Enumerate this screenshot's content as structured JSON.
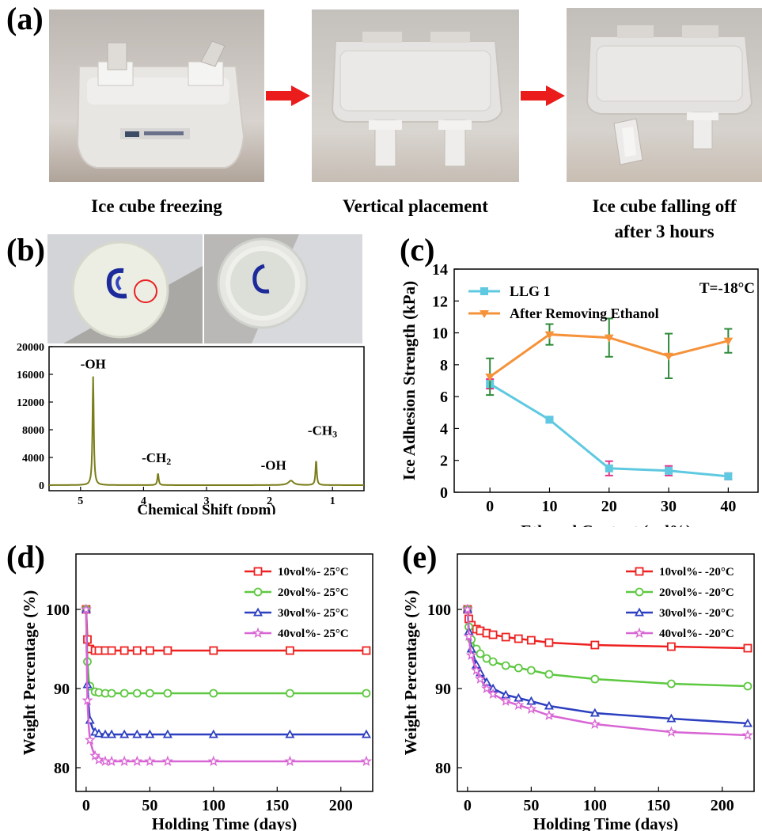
{
  "panel_a": {
    "letter": "(a)",
    "captions": [
      "Ice cube freezing",
      "Vertical placement",
      "Ice cube falling off",
      "after 3 hours"
    ]
  },
  "panel_b": {
    "letter": "(b)",
    "chart_data": {
      "type": "line",
      "xlabel": "Chemical Shift (ppm)",
      "ylabel": "",
      "xlim": [
        5.5,
        0.5
      ],
      "ylim": [
        -800,
        20000
      ],
      "xticks": [
        5,
        4,
        3,
        2,
        1
      ],
      "yticks": [
        0,
        4000,
        8000,
        12000,
        16000,
        20000
      ],
      "color": "#7b7d1a",
      "peaks": [
        {
          "x": 4.8,
          "y": 15700,
          "label": "-OH"
        },
        {
          "x": 3.77,
          "y": 1700,
          "label": "-CH",
          "sub": "2"
        },
        {
          "x": 1.66,
          "y": 650,
          "label": "-OH"
        },
        {
          "x": 1.26,
          "y": 3600,
          "label": "-CH",
          "sub": "3"
        }
      ]
    }
  },
  "panel_c": {
    "letter": "(c)",
    "chart_data": {
      "type": "line",
      "xlabel": "Ethanol Content (vol%)",
      "ylabel": "Ice Adhesion Strength (kPa)",
      "annotation": "T=-18°C",
      "x": [
        0,
        10,
        20,
        30,
        40
      ],
      "xlim": [
        -6,
        45
      ],
      "ylim": [
        0,
        14
      ],
      "xticks": [
        0,
        10,
        20,
        30,
        40
      ],
      "yticks": [
        0,
        2,
        4,
        6,
        8,
        10,
        12,
        14
      ],
      "legend_position": "top-left",
      "series": [
        {
          "name": "LLG 1",
          "values": [
            6.8,
            4.55,
            1.5,
            1.35,
            1.0
          ],
          "errors": [
            0.3,
            0.15,
            0.45,
            0.3,
            0.2
          ],
          "color": "#5ec9e0",
          "error_color": "#e0338c",
          "marker": "square"
        },
        {
          "name": "After Removing Ethanol",
          "values": [
            7.25,
            9.9,
            9.7,
            8.55,
            9.5
          ],
          "errors": [
            1.15,
            0.65,
            1.2,
            1.4,
            0.75
          ],
          "color": "#f5923a",
          "error_color": "#2e8b3a",
          "marker": "triangle-down"
        }
      ]
    }
  },
  "panel_d": {
    "letter": "(d)",
    "chart_data": {
      "type": "line",
      "xlabel": "Holding Time (days)",
      "ylabel": "Weight Percentage (%)",
      "x": [
        0,
        1,
        2,
        3,
        5,
        7,
        10,
        15,
        20,
        30,
        40,
        50,
        64,
        100,
        160,
        220
      ],
      "xlim": [
        -8,
        225
      ],
      "ylim": [
        77,
        107
      ],
      "xticks": [
        0,
        50,
        100,
        150,
        200
      ],
      "yticks": [
        80,
        90,
        100
      ],
      "legend_position": "top-right",
      "series": [
        {
          "name": "10vol%- 25°C",
          "values": [
            100,
            96.2,
            95.5,
            95.0,
            94.8,
            94.8,
            94.8,
            94.8,
            94.8,
            94.8,
            94.8,
            94.8,
            94.8,
            94.8,
            94.8,
            94.8
          ],
          "color": "#ee2020",
          "marker": "square"
        },
        {
          "name": "20vol%- 25°C",
          "values": [
            100,
            93.4,
            91.2,
            90.3,
            89.8,
            89.6,
            89.5,
            89.4,
            89.4,
            89.4,
            89.4,
            89.4,
            89.4,
            89.4,
            89.4,
            89.4
          ],
          "color": "#5dc840",
          "marker": "circle"
        },
        {
          "name": "30vol%- 25°C",
          "values": [
            100,
            90.5,
            87.8,
            86.0,
            85.0,
            84.5,
            84.3,
            84.2,
            84.2,
            84.2,
            84.2,
            84.2,
            84.2,
            84.2,
            84.2,
            84.2
          ],
          "color": "#2c3fc0",
          "marker": "triangle"
        },
        {
          "name": "40vol%- 25°C",
          "values": [
            100,
            88.5,
            85.3,
            83.5,
            82.3,
            81.5,
            81.0,
            80.8,
            80.8,
            80.8,
            80.8,
            80.8,
            80.8,
            80.8,
            80.8,
            80.8
          ],
          "color": "#d865d4",
          "marker": "star"
        }
      ]
    }
  },
  "panel_e": {
    "letter": "(e)",
    "chart_data": {
      "type": "line",
      "xlabel": "Holding Time (days)",
      "ylabel": "Weight Percentage (%)",
      "x": [
        0,
        1,
        2,
        3,
        5,
        7,
        10,
        15,
        20,
        30,
        40,
        50,
        64,
        100,
        160,
        220
      ],
      "xlim": [
        -8,
        225
      ],
      "ylim": [
        77,
        107
      ],
      "xticks": [
        0,
        50,
        100,
        150,
        200
      ],
      "yticks": [
        80,
        90,
        100
      ],
      "legend_position": "top-right",
      "series": [
        {
          "name": "10vol%- -20°C",
          "values": [
            100,
            98.8,
            98.3,
            98.0,
            97.7,
            97.5,
            97.3,
            97.0,
            96.8,
            96.5,
            96.3,
            96.1,
            95.8,
            95.5,
            95.3,
            95.1
          ],
          "color": "#ee2020",
          "marker": "square"
        },
        {
          "name": "20vol%- -20°C",
          "values": [
            100,
            97.8,
            96.9,
            96.2,
            95.5,
            95.0,
            94.4,
            93.8,
            93.4,
            92.9,
            92.6,
            92.3,
            91.8,
            91.2,
            90.6,
            90.3
          ],
          "color": "#5dc840",
          "marker": "circle"
        },
        {
          "name": "30vol%- -20°C",
          "values": [
            100,
            97.2,
            96.0,
            95.0,
            94.0,
            93.0,
            92.0,
            90.8,
            90.0,
            89.2,
            88.8,
            88.4,
            87.8,
            86.9,
            86.2,
            85.6
          ],
          "color": "#2c3fc0",
          "marker": "triangle"
        },
        {
          "name": "40vol%- -20°C",
          "values": [
            100,
            96.6,
            95.2,
            94.2,
            93.2,
            92.3,
            91.2,
            90.0,
            89.3,
            88.4,
            87.9,
            87.4,
            86.6,
            85.5,
            84.5,
            84.1
          ],
          "color": "#d865d4",
          "marker": "star"
        }
      ]
    }
  }
}
